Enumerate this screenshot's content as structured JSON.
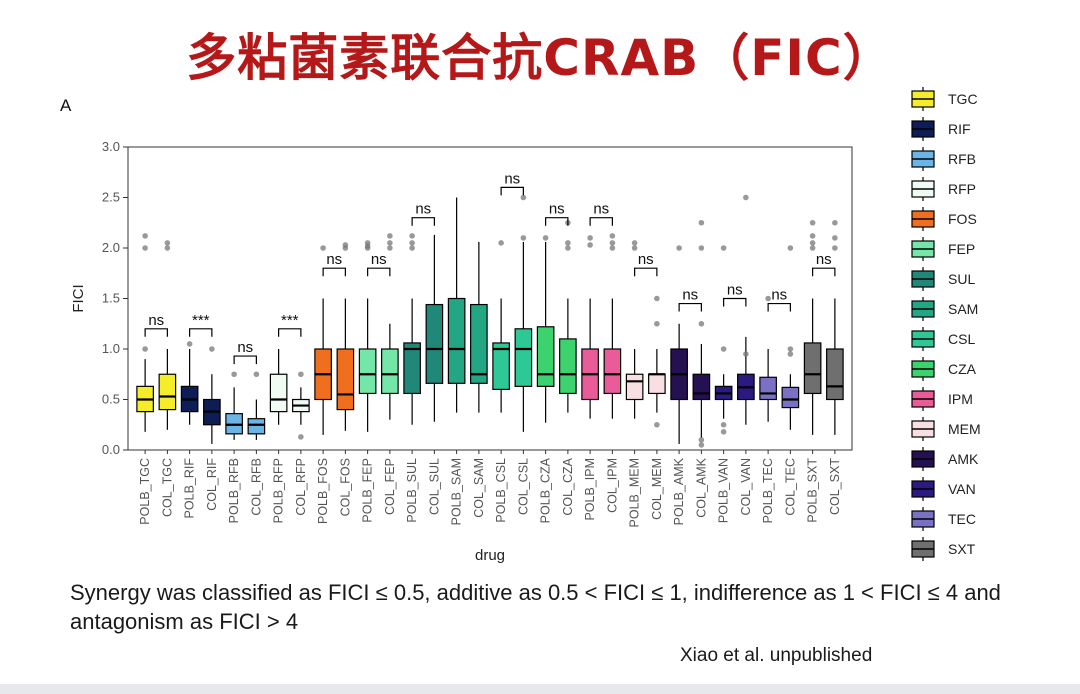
{
  "slide": {
    "title": "多粘菌素联合抗CRAB（FIC）",
    "panel_label": "A",
    "caption": "Synergy was classified as FICI ≤ 0.5, additive as 0.5 < FICI ≤ 1, indifference as 1 < FICI ≤ 4 and antagonism as FICI > 4",
    "credit": "Xiao et al. unpublished"
  },
  "chart_data": {
    "type": "box",
    "xlabel": "drug",
    "ylabel": "FICI",
    "ylim": [
      0,
      3
    ],
    "yticks": [
      "0.0",
      "0.5",
      "1.0",
      "1.5",
      "2.0",
      "2.5",
      "3.0"
    ],
    "grid": false,
    "legend_position": "right",
    "legend": [
      {
        "name": "TGC",
        "color": "#f5ed2a"
      },
      {
        "name": "RIF",
        "color": "#0e1d55"
      },
      {
        "name": "RFB",
        "color": "#6ab5e6"
      },
      {
        "name": "RFP",
        "color": "#f0fbf4"
      },
      {
        "name": "FOS",
        "color": "#ef6f1e"
      },
      {
        "name": "FEP",
        "color": "#73e6a8"
      },
      {
        "name": "SUL",
        "color": "#1f8878"
      },
      {
        "name": "SAM",
        "color": "#22a683"
      },
      {
        "name": "CSL",
        "color": "#2ec897"
      },
      {
        "name": "CZA",
        "color": "#3cd36e"
      },
      {
        "name": "IPM",
        "color": "#ea5b9a"
      },
      {
        "name": "MEM",
        "color": "#f7dfe3"
      },
      {
        "name": "AMK",
        "color": "#251152"
      },
      {
        "name": "VAN",
        "color": "#2c1a82"
      },
      {
        "name": "TEC",
        "color": "#7a70c4"
      },
      {
        "name": "SXT",
        "color": "#6f6f6f"
      }
    ],
    "categories": [
      "POLB_TGC",
      "COL_TGC",
      "POLB_RIF",
      "COL_RIF",
      "POLB_RFB",
      "COL_RFB",
      "POLB_RFP",
      "COL_RFP",
      "POLB_FOS",
      "COL_FOS",
      "POLB_FEP",
      "COL_FEP",
      "POLB_SUL",
      "COL_SUL",
      "POLB_SAM",
      "COL_SAM",
      "POLB_CSL",
      "COL_CSL",
      "POLB_CZA",
      "COL_CZA",
      "POLB_IPM",
      "COL_IPM",
      "POLB_MEM",
      "COL_MEM",
      "POLB_AMK",
      "COL_AMK",
      "POLB_VAN",
      "COL_VAN",
      "POLB_TEC",
      "COL_TEC",
      "POLB_SXT",
      "COL_SXT"
    ],
    "boxes": [
      {
        "drug": "TGC",
        "min": 0.18,
        "q1": 0.38,
        "median": 0.5,
        "q3": 0.63,
        "max": 0.9,
        "outliers": [
          1.0,
          2.0,
          2.12
        ]
      },
      {
        "drug": "TGC",
        "min": 0.2,
        "q1": 0.4,
        "median": 0.53,
        "q3": 0.75,
        "max": 1.0,
        "outliers": [
          2.0,
          2.05
        ]
      },
      {
        "drug": "RIF",
        "min": 0.25,
        "q1": 0.38,
        "median": 0.5,
        "q3": 0.63,
        "max": 1.0,
        "outliers": [
          1.05
        ]
      },
      {
        "drug": "RIF",
        "min": 0.06,
        "q1": 0.25,
        "median": 0.38,
        "q3": 0.5,
        "max": 0.75,
        "outliers": [
          1.0
        ]
      },
      {
        "drug": "RFB",
        "min": 0.1,
        "q1": 0.16,
        "median": 0.25,
        "q3": 0.36,
        "max": 0.62,
        "outliers": [
          0.75
        ]
      },
      {
        "drug": "RFB",
        "min": 0.1,
        "q1": 0.16,
        "median": 0.25,
        "q3": 0.31,
        "max": 0.5,
        "outliers": [
          0.75
        ]
      },
      {
        "drug": "RFP",
        "min": 0.25,
        "q1": 0.38,
        "median": 0.5,
        "q3": 0.75,
        "max": 1.0,
        "outliers": []
      },
      {
        "drug": "RFP",
        "min": 0.25,
        "q1": 0.38,
        "median": 0.44,
        "q3": 0.5,
        "max": 0.62,
        "outliers": [
          0.75,
          0.13
        ]
      },
      {
        "drug": "FOS",
        "min": 0.15,
        "q1": 0.5,
        "median": 0.75,
        "q3": 1.0,
        "max": 1.5,
        "outliers": [
          2.0
        ]
      },
      {
        "drug": "FOS",
        "min": 0.19,
        "q1": 0.4,
        "median": 0.55,
        "q3": 1.0,
        "max": 1.5,
        "outliers": [
          2.0,
          2.03
        ]
      },
      {
        "drug": "FEP",
        "min": 0.18,
        "q1": 0.56,
        "median": 0.75,
        "q3": 1.0,
        "max": 1.5,
        "outliers": [
          2.0,
          2.02,
          2.05
        ]
      },
      {
        "drug": "FEP",
        "min": 0.3,
        "q1": 0.56,
        "median": 0.75,
        "q3": 1.0,
        "max": 1.25,
        "outliers": [
          2.0,
          2.05,
          2.12
        ]
      },
      {
        "drug": "SUL",
        "min": 0.25,
        "q1": 0.56,
        "median": 1.0,
        "q3": 1.06,
        "max": 1.5,
        "outliers": [
          2.0,
          2.05,
          2.12
        ]
      },
      {
        "drug": "SUL",
        "min": 0.28,
        "q1": 0.66,
        "median": 1.0,
        "q3": 1.44,
        "max": 2.13,
        "outliers": []
      },
      {
        "drug": "SAM",
        "min": 0.37,
        "q1": 0.66,
        "median": 1.0,
        "q3": 1.5,
        "max": 2.5,
        "outliers": []
      },
      {
        "drug": "SAM",
        "min": 0.37,
        "q1": 0.66,
        "median": 0.75,
        "q3": 1.44,
        "max": 2.06,
        "outliers": []
      },
      {
        "drug": "CSL",
        "min": 0.37,
        "q1": 0.6,
        "median": 1.0,
        "q3": 1.06,
        "max": 1.5,
        "outliers": [
          2.05
        ]
      },
      {
        "drug": "CSL",
        "min": 0.18,
        "q1": 0.63,
        "median": 1.0,
        "q3": 1.2,
        "max": 2.06,
        "outliers": [
          2.5,
          2.1
        ]
      },
      {
        "drug": "CZA",
        "min": 0.27,
        "q1": 0.63,
        "median": 0.75,
        "q3": 1.22,
        "max": 2.06,
        "outliers": [
          2.1
        ]
      },
      {
        "drug": "CZA",
        "min": 0.37,
        "q1": 0.56,
        "median": 0.75,
        "q3": 1.1,
        "max": 1.5,
        "outliers": [
          2.0,
          2.05,
          2.25
        ]
      },
      {
        "drug": "IPM",
        "min": 0.31,
        "q1": 0.5,
        "median": 0.75,
        "q3": 1.0,
        "max": 1.5,
        "outliers": [
          2.03,
          2.1
        ]
      },
      {
        "drug": "IPM",
        "min": 0.31,
        "q1": 0.56,
        "median": 0.75,
        "q3": 1.0,
        "max": 1.5,
        "outliers": [
          2.0,
          2.05,
          2.12
        ]
      },
      {
        "drug": "MEM",
        "min": 0.31,
        "q1": 0.5,
        "median": 0.68,
        "q3": 0.75,
        "max": 1.0,
        "outliers": [
          2.0,
          2.05
        ]
      },
      {
        "drug": "MEM",
        "min": 0.37,
        "q1": 0.56,
        "median": 0.75,
        "q3": 0.75,
        "max": 1.0,
        "outliers": [
          1.5,
          1.25,
          0.25
        ]
      },
      {
        "drug": "AMK",
        "min": 0.06,
        "q1": 0.5,
        "median": 0.75,
        "q3": 1.0,
        "max": 1.25,
        "outliers": [
          2.0
        ]
      },
      {
        "drug": "AMK",
        "min": 0.12,
        "q1": 0.5,
        "median": 0.56,
        "q3": 0.75,
        "max": 1.05,
        "outliers": [
          2.0,
          2.25,
          1.25,
          0.05,
          0.1
        ]
      },
      {
        "drug": "VAN",
        "min": 0.31,
        "q1": 0.5,
        "median": 0.56,
        "q3": 0.63,
        "max": 0.75,
        "outliers": [
          1.0,
          2.0,
          0.25,
          0.18
        ]
      },
      {
        "drug": "VAN",
        "min": 0.25,
        "q1": 0.5,
        "median": 0.62,
        "q3": 0.75,
        "max": 1.12,
        "outliers": [
          0.95,
          2.5
        ]
      },
      {
        "drug": "TEC",
        "min": 0.28,
        "q1": 0.5,
        "median": 0.56,
        "q3": 0.72,
        "max": 1.0,
        "outliers": [
          1.5
        ]
      },
      {
        "drug": "TEC",
        "min": 0.2,
        "q1": 0.42,
        "median": 0.5,
        "q3": 0.62,
        "max": 0.75,
        "outliers": [
          1.0,
          0.95,
          2.0
        ]
      },
      {
        "drug": "SXT",
        "min": 0.15,
        "q1": 0.56,
        "median": 0.75,
        "q3": 1.06,
        "max": 1.5,
        "outliers": [
          2.0,
          2.05,
          2.12,
          2.25
        ]
      },
      {
        "drug": "SXT",
        "min": 0.15,
        "q1": 0.5,
        "median": 0.63,
        "q3": 1.0,
        "max": 1.5,
        "outliers": [
          2.0,
          2.1,
          2.25
        ]
      }
    ],
    "annotations": [
      {
        "left": "POLB_TGC",
        "right": "COL_TGC",
        "y": 1.2,
        "text": "ns"
      },
      {
        "left": "POLB_RIF",
        "right": "COL_RIF",
        "y": 1.2,
        "text": "***"
      },
      {
        "left": "POLB_RFB",
        "right": "COL_RFB",
        "y": 0.93,
        "text": "ns"
      },
      {
        "left": "POLB_RFP",
        "right": "COL_RFP",
        "y": 1.2,
        "text": "***"
      },
      {
        "left": "POLB_FOS",
        "right": "COL_FOS",
        "y": 1.8,
        "text": "ns"
      },
      {
        "left": "POLB_FEP",
        "right": "COL_FEP",
        "y": 1.8,
        "text": "ns"
      },
      {
        "left": "POLB_SUL",
        "right": "COL_SUL",
        "y": 2.3,
        "text": "ns"
      },
      {
        "left": "POLB_CSL",
        "right": "COL_CSL",
        "y": 2.6,
        "text": "ns"
      },
      {
        "left": "POLB_CZA",
        "right": "COL_CZA",
        "y": 2.3,
        "text": "ns"
      },
      {
        "left": "POLB_IPM",
        "right": "COL_IPM",
        "y": 2.3,
        "text": "ns"
      },
      {
        "left": "POLB_MEM",
        "right": "COL_MEM",
        "y": 1.8,
        "text": "ns"
      },
      {
        "left": "POLB_AMK",
        "right": "COL_AMK",
        "y": 1.45,
        "text": "ns"
      },
      {
        "left": "POLB_VAN",
        "right": "COL_VAN",
        "y": 1.5,
        "text": "ns"
      },
      {
        "left": "POLB_TEC",
        "right": "COL_TEC",
        "y": 1.45,
        "text": "ns"
      },
      {
        "left": "POLB_SXT",
        "right": "COL_SXT",
        "y": 1.8,
        "text": "ns"
      }
    ]
  }
}
